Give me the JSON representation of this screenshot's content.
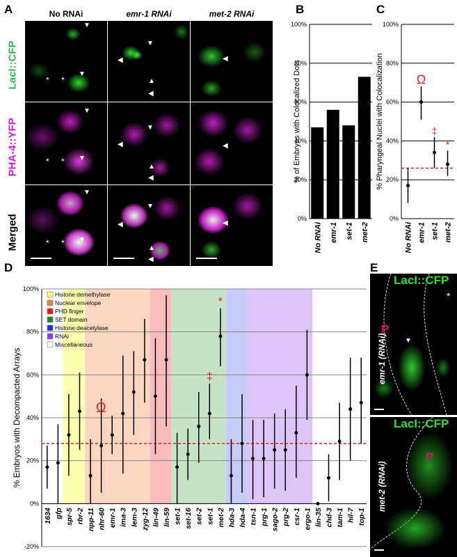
{
  "panel_letters": {
    "a": "A",
    "b": "B",
    "c": "C",
    "d": "D",
    "e": "E"
  },
  "panelA": {
    "columns": [
      "No RNAi",
      "emr-1 RNAi",
      "met-2 RNAi"
    ],
    "rows": [
      "LacI::CFP",
      "PHA-4::YFP",
      "Merged"
    ],
    "colors": {
      "green": "#2eb84a",
      "magenta": "#d11fd1",
      "black": "#000000"
    }
  },
  "panelE": {
    "top": {
      "title": "LacI::CFP",
      "label": "emr-1 (RNAi)",
      "marker": "P"
    },
    "bottom": {
      "title": "LacI::CFP",
      "label": "met-2 (RNAi)",
      "marker": "P"
    }
  },
  "chart_data": [
    {
      "id": "B",
      "type": "bar",
      "ylabel": "% of Embryos with Colocalized Dots",
      "ylim": [
        0,
        100
      ],
      "yticks": [
        "0%",
        "20%",
        "40%",
        "60%",
        "80%",
        "100%"
      ],
      "categories": [
        "No RNAi",
        "emr-1",
        "set-1",
        "met-2"
      ],
      "values": [
        47,
        56,
        48,
        73
      ]
    },
    {
      "id": "C",
      "type": "scatter",
      "ylabel": "% Pharyngeal Nuclei with Colocalization",
      "ylim": [
        0,
        100
      ],
      "yticks": [
        "0%",
        "20%",
        "40%",
        "60%",
        "80%",
        "100%"
      ],
      "categories": [
        "No RNAi",
        "emr-1",
        "set-1",
        "met-2"
      ],
      "values": [
        17,
        60,
        34,
        28
      ],
      "err_low": [
        8,
        51,
        26,
        22
      ],
      "err_high": [
        26,
        68,
        42,
        35
      ],
      "markers": [
        "",
        "Ω",
        "‡",
        "*"
      ],
      "reference_line": 26
    },
    {
      "id": "D",
      "type": "scatter",
      "ylabel": "% Embryos with Decompacted Arrays",
      "ylim": [
        -20,
        100
      ],
      "yticks": [
        "-20%",
        "0%",
        "20%",
        "40%",
        "60%",
        "80%",
        "100%"
      ],
      "categories": [
        "1634",
        "gfp",
        "spr-5",
        "rbr-2",
        "npp-11",
        "nhr-60",
        "emr-1",
        "ima-3",
        "lem-3",
        "zyg-12",
        "lin-49",
        "lin-59",
        "set-1",
        "set-16",
        "set-2",
        "set-1",
        "met-2",
        "hda-3",
        "hda-4",
        "tsn-1",
        "prg-1",
        "sago-2",
        "prg-2",
        "csr-1",
        "ergo-1",
        "lin-35",
        "chd-3",
        "tam-1",
        "hil-7",
        "top-1"
      ],
      "values": [
        17,
        19,
        32,
        43,
        13,
        27,
        32,
        42,
        52,
        67,
        50,
        67,
        17,
        23,
        36,
        42,
        78,
        13,
        28,
        21,
        21,
        25,
        25,
        33,
        60,
        0,
        12,
        29,
        44,
        47
      ],
      "err_low": [
        7,
        0,
        13,
        25,
        0,
        5,
        23,
        14,
        32,
        47,
        23,
        36,
        0,
        11,
        19,
        30,
        64,
        0,
        5,
        2,
        3,
        7,
        6,
        12,
        39,
        0,
        1,
        11,
        20,
        28
      ],
      "err_high": [
        27,
        37,
        51,
        61,
        30,
        49,
        41,
        69,
        71,
        86,
        77,
        97,
        33,
        35,
        52,
        56,
        91,
        30,
        51,
        39,
        39,
        42,
        44,
        55,
        81,
        0,
        23,
        47,
        68,
        68
      ],
      "markers": {
        "6": "Ω",
        "15": "‡",
        "16": "*"
      },
      "reference_line": 28,
      "legend": [
        {
          "label": "Histone demethylase",
          "color": "#ffff66"
        },
        {
          "label": "Nuclear envelope",
          "color": "#f47c3c"
        },
        {
          "label": "PHD finger",
          "color": "#ee1111"
        },
        {
          "label": "SET domain",
          "color": "#1a8a1a"
        },
        {
          "label": "Histone deacetylase",
          "color": "#1a2aff"
        },
        {
          "label": "RNAi",
          "color": "#8a3aff"
        },
        {
          "label": "Miscellaneous",
          "color": "#ffffff"
        }
      ],
      "groups": [
        {
          "from": 2,
          "to": 3,
          "color": "#ffffb0"
        },
        {
          "from": 4,
          "to": 9,
          "color": "#fbd7c2"
        },
        {
          "from": 10,
          "to": 11,
          "color": "#f9bcbc"
        },
        {
          "from": 12,
          "to": 16,
          "color": "#c6e3c6"
        },
        {
          "from": 17,
          "to": 18,
          "color": "#c6ccf7"
        },
        {
          "from": 19,
          "to": 24,
          "color": "#dcc6f7"
        }
      ]
    }
  ]
}
